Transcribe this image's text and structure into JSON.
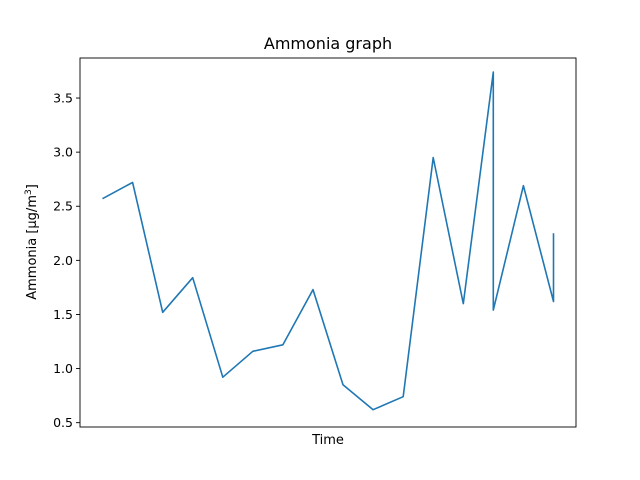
{
  "chart_data": {
    "type": "line",
    "title": "Ammonia graph",
    "xlabel": "Time",
    "ylabel": "Ammonia [µg/m",
    "ylabel_superscript": "3",
    "ylabel_suffix": "]",
    "x_tick_labels": false,
    "ylim": [
      0.46,
      3.87
    ],
    "y_ticks": [
      0.5,
      1.0,
      1.5,
      2.0,
      2.5,
      3.0,
      3.5
    ],
    "y_tick_labels": [
      "0.5",
      "1.0",
      "1.5",
      "2.0",
      "2.5",
      "3.0",
      "3.5"
    ],
    "xlim": [
      -0.75,
      15.75
    ],
    "grid": false,
    "series": [
      {
        "color": "#1f77b4",
        "x": [
          0,
          1,
          2,
          3,
          4,
          5,
          6,
          7,
          8,
          9,
          10,
          11,
          12,
          13,
          13,
          14,
          15,
          15
        ],
        "y": [
          2.57,
          2.72,
          1.52,
          1.84,
          0.92,
          1.16,
          1.22,
          1.73,
          0.85,
          0.62,
          0.74,
          2.95,
          1.6,
          3.74,
          1.54,
          2.69,
          1.62,
          2.25
        ]
      }
    ]
  }
}
